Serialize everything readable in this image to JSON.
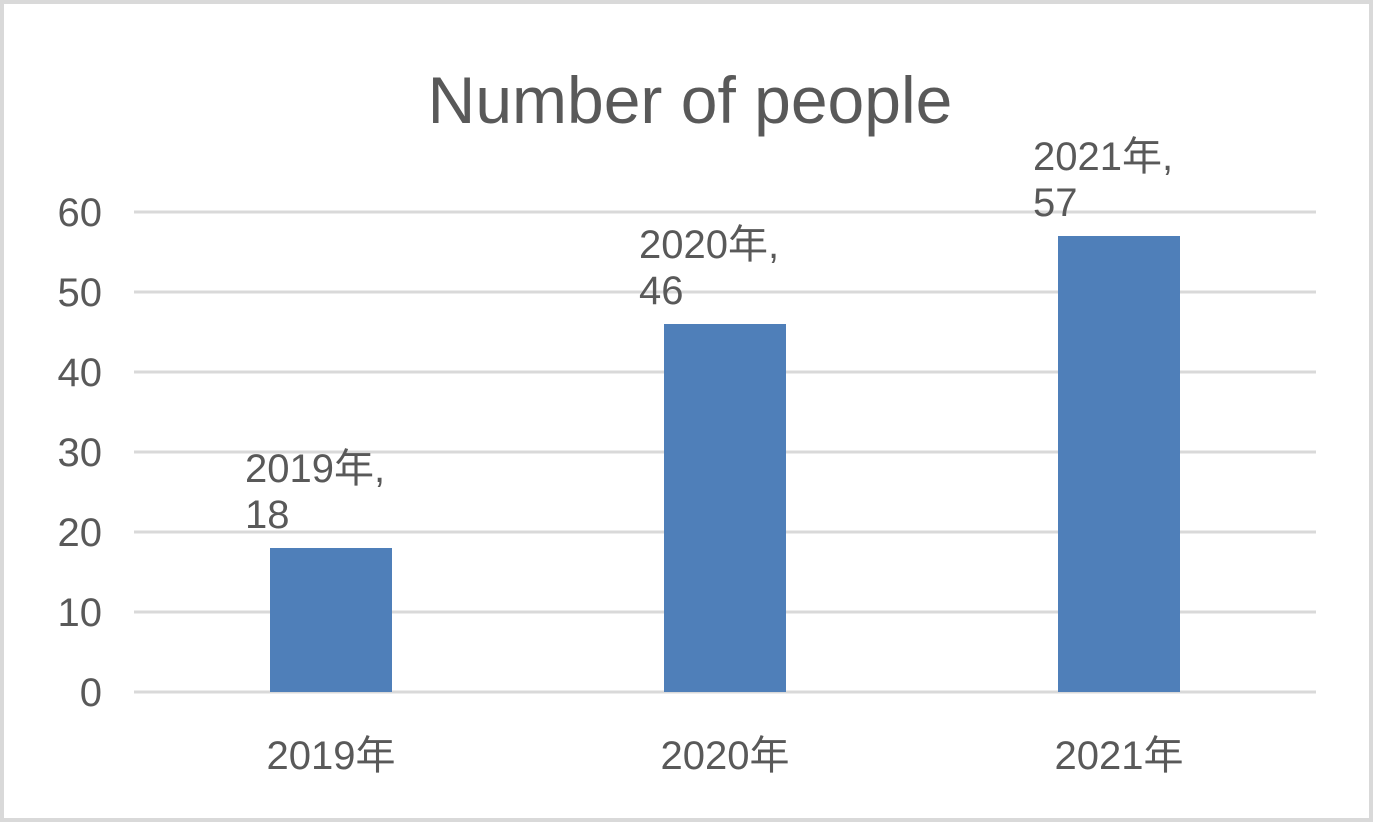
{
  "chart_data": {
    "type": "bar",
    "title": "Number of people",
    "xlabel": "",
    "ylabel": "",
    "categories": [
      "2019年",
      "2020年",
      "2021年"
    ],
    "values": [
      18,
      46,
      57
    ],
    "data_labels": [
      [
        "2019年,",
        "18"
      ],
      [
        "2020年,",
        "46"
      ],
      [
        "2021年,",
        "57"
      ]
    ],
    "y_ticks": [
      "0",
      "10",
      "20",
      "30",
      "40",
      "50",
      "60"
    ],
    "ylim": [
      0,
      60
    ],
    "grid": true,
    "legend": "none",
    "colors": {
      "bar": "#4f7fb9",
      "grid": "#d9d9d9",
      "text": "#595959",
      "border": "#d9d9d9"
    }
  }
}
